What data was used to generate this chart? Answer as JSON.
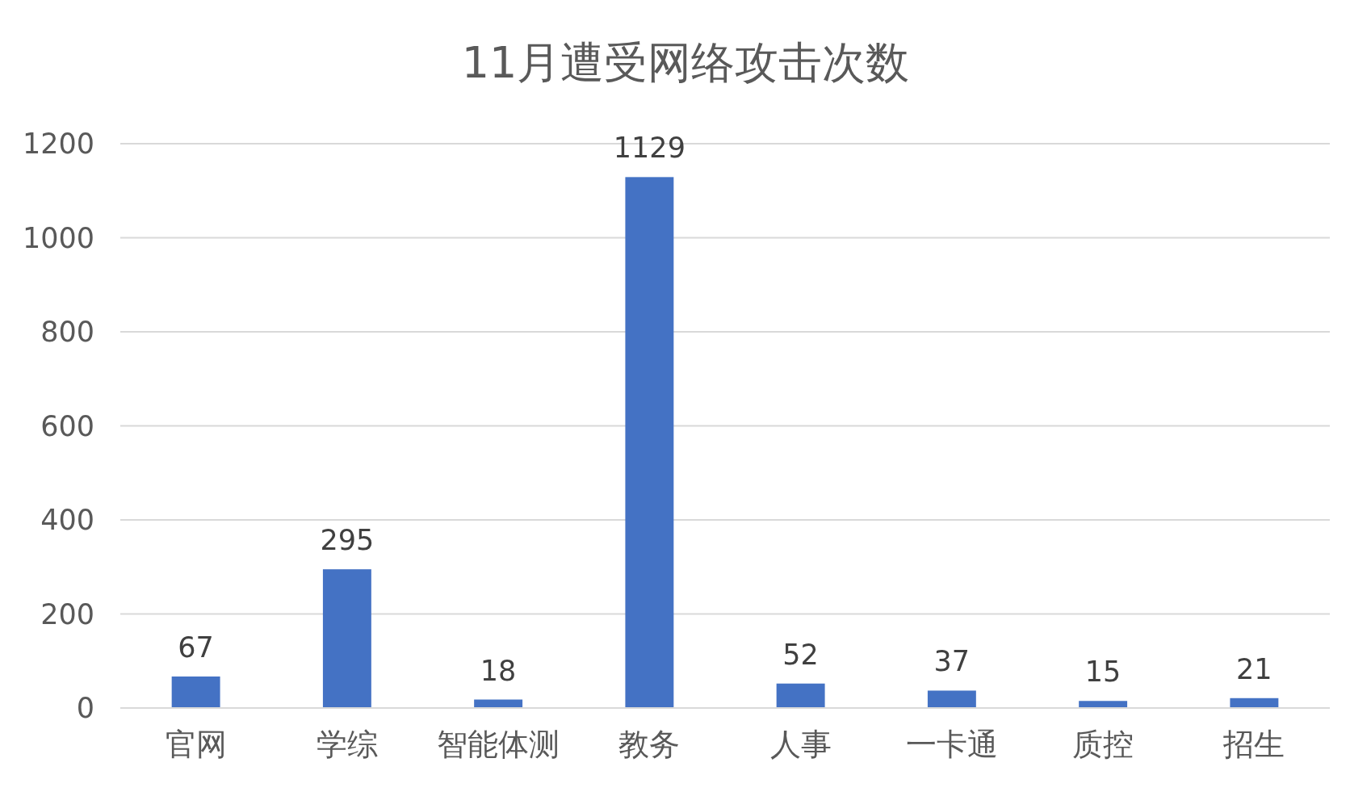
{
  "chart_data": {
    "type": "bar",
    "title": "11月遭受网络攻击次数",
    "categories": [
      "官网",
      "学综",
      "智能体测",
      "教务",
      "人事",
      "一卡通",
      "质控",
      "招生"
    ],
    "values": [
      67,
      295,
      18,
      1129,
      52,
      37,
      15,
      21
    ],
    "color": "#4472c4",
    "ylim": [
      0,
      1200
    ],
    "yticks": [
      0,
      200,
      400,
      600,
      800,
      1000,
      1200
    ],
    "grid": "y",
    "data_labels": true
  }
}
